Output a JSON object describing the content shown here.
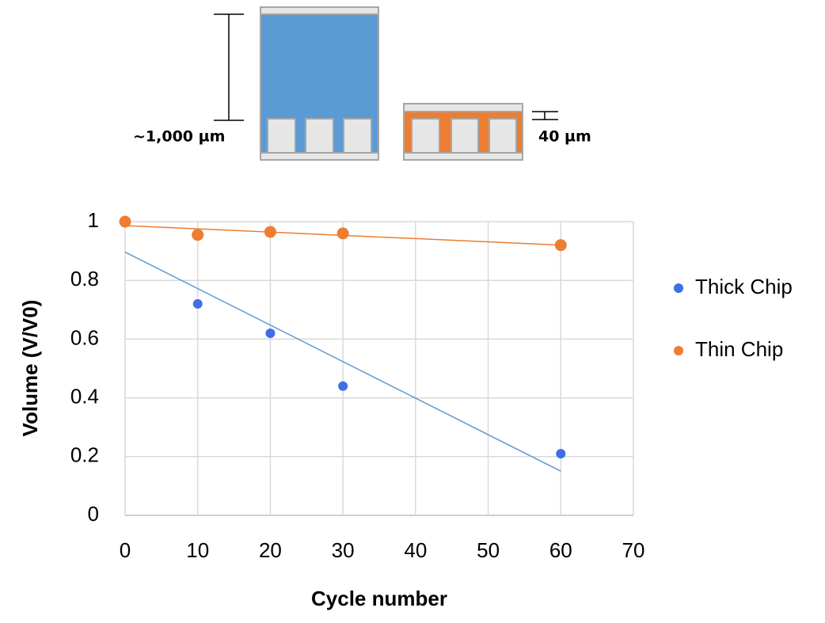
{
  "diagram": {
    "labels": [
      "~1,000 µm",
      "40 µm"
    ]
  },
  "chart_data": {
    "type": "scatter",
    "x_label": "Cycle number",
    "y_label": "Volume (V/V0)",
    "xlim": [
      0,
      70
    ],
    "xticks": [
      0,
      10,
      20,
      30,
      40,
      50,
      60,
      70
    ],
    "ylim": [
      0,
      1
    ],
    "yticks": [
      0,
      0.2,
      0.4,
      0.6,
      0.8,
      1
    ],
    "grid": true,
    "legend": "right",
    "series": [
      {
        "name": "Thick Chip",
        "color": "#3f6fe6",
        "trendline": true,
        "trendline_color": "#5b9bd5",
        "x": [
          0,
          10,
          20,
          30,
          60
        ],
        "values": [
          1,
          0.72,
          0.62,
          0.44,
          0.21
        ]
      },
      {
        "name": "Thin Chip",
        "color": "#ed7d31",
        "trendline": true,
        "trendline_color": "#ed7d31",
        "x": [
          0,
          10,
          20,
          30,
          60
        ],
        "values": [
          1,
          0.955,
          0.965,
          0.96,
          0.92
        ]
      }
    ]
  }
}
